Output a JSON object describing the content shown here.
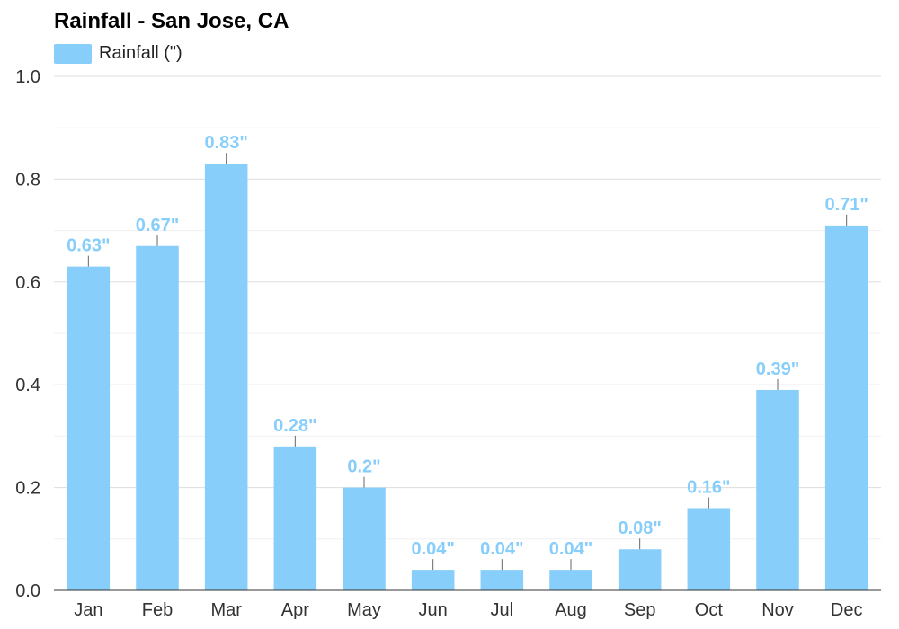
{
  "chart_data": {
    "type": "bar",
    "title": "Rainfall - San Jose, CA",
    "xlabel": "",
    "ylabel": "",
    "categories": [
      "Jan",
      "Feb",
      "Mar",
      "Apr",
      "May",
      "Jun",
      "Jul",
      "Aug",
      "Sep",
      "Oct",
      "Nov",
      "Dec"
    ],
    "series": [
      {
        "name": "Rainfall (\")",
        "values": [
          0.63,
          0.67,
          0.83,
          0.28,
          0.2,
          0.04,
          0.04,
          0.04,
          0.08,
          0.16,
          0.39,
          0.71
        ],
        "labels": [
          "0.63\"",
          "0.67\"",
          "0.83\"",
          "0.28\"",
          "0.2\"",
          "0.04\"",
          "0.04\"",
          "0.04\"",
          "0.08\"",
          "0.16\"",
          "0.39\"",
          "0.71\""
        ]
      }
    ],
    "ylim": [
      0,
      1.0
    ],
    "yticks": [
      "0.0",
      "0.2",
      "0.4",
      "0.6",
      "0.8",
      "1.0"
    ],
    "grid": true,
    "legend_position": "top-left",
    "colors": {
      "bar": "#87cefa",
      "label": "#87cefa",
      "grid_major": "#dddddd",
      "grid_minor": "#f0f0f0",
      "axis": "#333333",
      "whisker": "#666666"
    }
  }
}
